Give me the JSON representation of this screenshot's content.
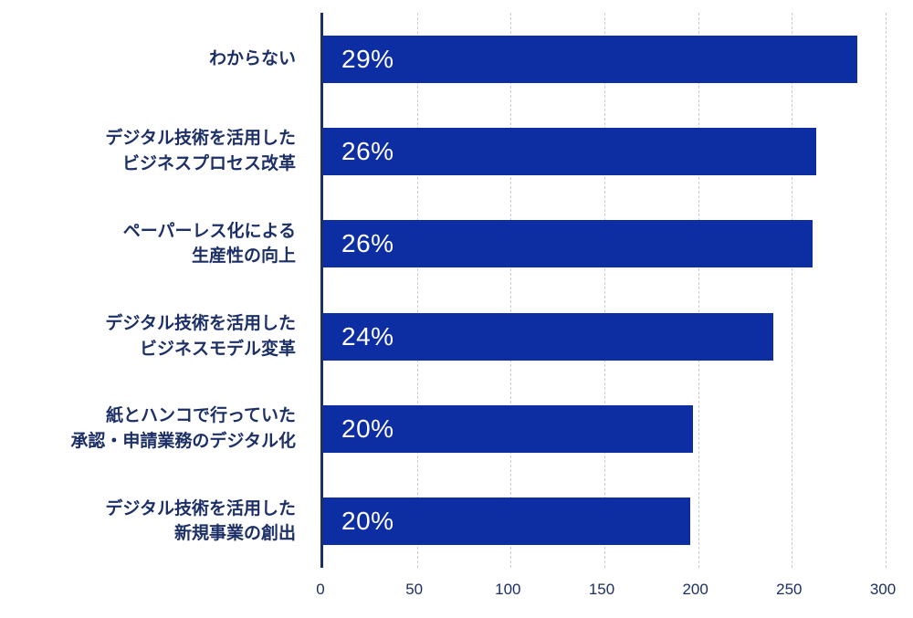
{
  "chart_data": {
    "type": "bar",
    "orientation": "horizontal",
    "title": "",
    "xlabel": "",
    "ylabel": "",
    "legend": "none",
    "grid": "dashed-vertical",
    "categories": [
      "わからない",
      "デジタル技術を活用した ビジネスプロセス改革",
      "ペーパーレス化による 生産性の向上",
      "デジタル技術を活用した ビジネスモデル変革",
      "紙とハンコで行っていた 承認・申請業務のデジタル化",
      "デジタル技術を活用した 新規事業の創出"
    ],
    "percent_labels": [
      "29%",
      "26%",
      "26%",
      "24%",
      "20%",
      "20%"
    ],
    "values": [
      285,
      263,
      261,
      240,
      197,
      196
    ],
    "rows": [
      {
        "label_line1": "わからない",
        "label_line2": "",
        "percent_label": "29%",
        "value": 285
      },
      {
        "label_line1": "デジタル技術を活用した",
        "label_line2": "ビジネスプロセス改革",
        "percent_label": "26%",
        "value": 263
      },
      {
        "label_line1": "ペーパーレス化による",
        "label_line2": "生産性の向上",
        "percent_label": "26%",
        "value": 261
      },
      {
        "label_line1": "デジタル技術を活用した",
        "label_line2": "ビジネスモデル変革",
        "percent_label": "24%",
        "value": 240
      },
      {
        "label_line1": "紙とハンコで行っていた",
        "label_line2": "承認・申請業務のデジタル化",
        "percent_label": "20%",
        "value": 197
      },
      {
        "label_line1": "デジタル技術を活用した",
        "label_line2": "新規事業の創出",
        "percent_label": "20%",
        "value": 196
      }
    ],
    "x_axis": {
      "min": 0,
      "max": 300,
      "ticks": [
        "0",
        "50",
        "100",
        "150",
        "200",
        "250",
        "300"
      ]
    },
    "colors": {
      "bar": "#0d2ea3",
      "label_text": "#1c2f66",
      "tick_text": "#1c2f66",
      "axis_line": "#1c2f66",
      "gridline": "#c9cdd3",
      "background": "#ffffff"
    }
  }
}
